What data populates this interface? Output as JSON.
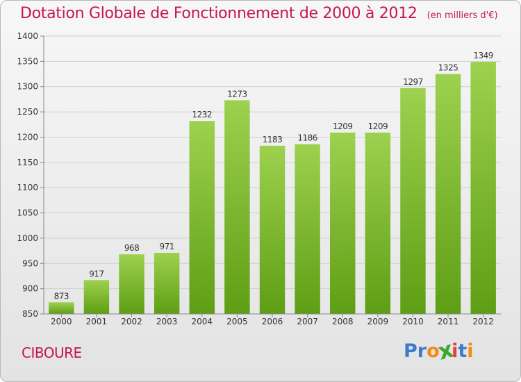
{
  "title": "Dotation Globale de Fonctionnement de 2000 à 2012",
  "subtitle": "(en milliers d'€)",
  "town": "CIBOURE",
  "logo": {
    "letters": [
      "P",
      "r",
      "o",
      "x",
      "i",
      "t",
      "i"
    ],
    "colors": [
      "#3a7ccf",
      "#3a7ccf",
      "#f18a12",
      "#3fa535",
      "#e43d3d",
      "#3a7ccf",
      "#f18a12"
    ]
  },
  "colors": {
    "accent": "#c4174f",
    "bar_light": "#9dd14f",
    "bar_dark": "#5e9e14"
  },
  "chart_data": {
    "type": "bar",
    "title": "Dotation Globale de Fonctionnement de 2000 à 2012",
    "subtitle": "(en milliers d'€)",
    "categories": [
      "2000",
      "2001",
      "2002",
      "2003",
      "2004",
      "2005",
      "2006",
      "2007",
      "2008",
      "2009",
      "2010",
      "2011",
      "2012"
    ],
    "values": [
      873,
      917,
      968,
      971,
      1232,
      1273,
      1183,
      1186,
      1209,
      1209,
      1297,
      1325,
      1349
    ],
    "value_labels": [
      "873",
      "917",
      "968",
      "971",
      "1232",
      "1273",
      "1183",
      "1186",
      "1209",
      "1209",
      "1297",
      "1325",
      "1349"
    ],
    "yticks": [
      "850",
      "900",
      "950",
      "1000",
      "1050",
      "1100",
      "1150",
      "1200",
      "1250",
      "1300",
      "1350",
      "1400"
    ],
    "ylim": [
      850,
      1400
    ],
    "xlabel": "",
    "ylabel": "",
    "grid": true
  }
}
